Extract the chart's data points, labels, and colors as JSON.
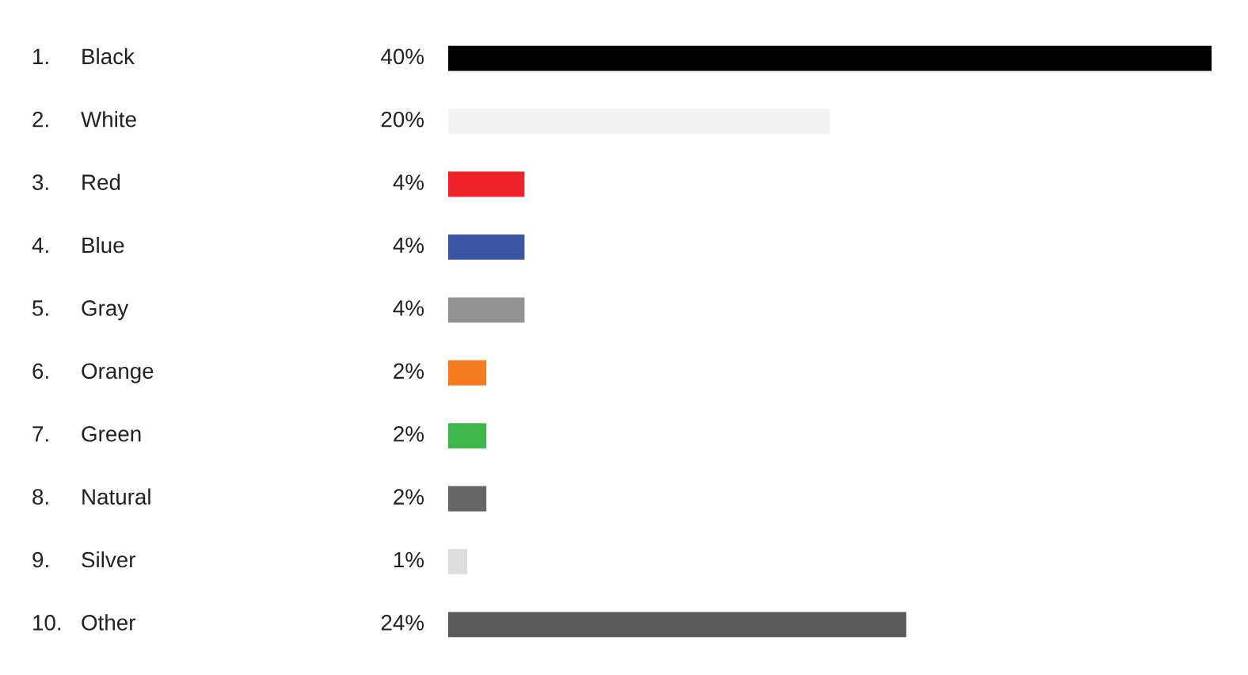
{
  "chart_data": {
    "type": "bar",
    "orientation": "horizontal",
    "categories": [
      "Black",
      "White",
      "Red",
      "Blue",
      "Gray",
      "Orange",
      "Green",
      "Natural",
      "Silver",
      "Other"
    ],
    "values": [
      40,
      20,
      4,
      4,
      4,
      2,
      2,
      2,
      1,
      24
    ],
    "value_labels": [
      "40%",
      "20%",
      "4%",
      "4%",
      "4%",
      "2%",
      "2%",
      "2%",
      "1%",
      "24%"
    ],
    "colors": [
      "#000000",
      "#f4f4f4",
      "#ee2229",
      "#3a55a4",
      "#929292",
      "#f47b20",
      "#3fb54a",
      "#666666",
      "#dddddd",
      "#5a5a5a"
    ],
    "annotations": [
      "1.",
      "2.",
      "3.",
      "4.",
      "5.",
      "6.",
      "7.",
      "8.",
      "9.",
      "10."
    ]
  }
}
